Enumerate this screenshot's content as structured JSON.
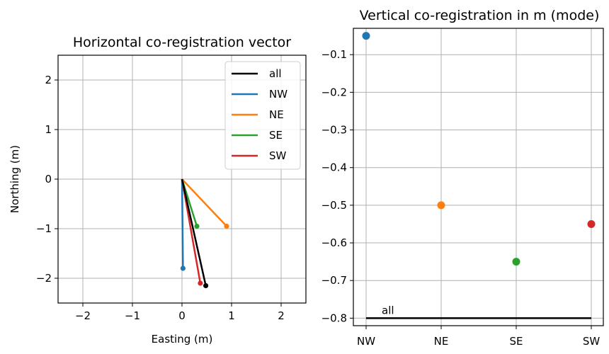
{
  "chart_data": [
    {
      "type": "line",
      "title": "Horizontal co-registration vector",
      "xlabel": "Easting (m)",
      "ylabel": "Northing (m)",
      "xlim": [
        -2.5,
        2.5
      ],
      "ylim": [
        -2.5,
        2.5
      ],
      "xticks": [
        -2,
        -1,
        0,
        1,
        2
      ],
      "yticks": [
        -2,
        -1,
        0,
        1,
        2
      ],
      "xtick_labels": [
        "−2",
        "−1",
        "0",
        "1",
        "2"
      ],
      "ytick_labels": [
        "−2",
        "−1",
        "0",
        "1",
        "2"
      ],
      "grid": true,
      "legend_position": "top-right",
      "series": [
        {
          "name": "all",
          "color": "#000000",
          "x": [
            0,
            0.48
          ],
          "y": [
            0,
            -2.15
          ]
        },
        {
          "name": "NW",
          "color": "#1f77b4",
          "x": [
            0,
            0.02
          ],
          "y": [
            0,
            -1.8
          ]
        },
        {
          "name": "NE",
          "color": "#ff7f0e",
          "x": [
            0,
            0.9
          ],
          "y": [
            0,
            -0.95
          ]
        },
        {
          "name": "SE",
          "color": "#2ca02c",
          "x": [
            0,
            0.3
          ],
          "y": [
            0,
            -0.95
          ]
        },
        {
          "name": "SW",
          "color": "#d62728",
          "x": [
            0,
            0.37
          ],
          "y": [
            0,
            -2.1
          ]
        }
      ]
    },
    {
      "type": "scatter",
      "title": "Vertical co-registration in m (mode)",
      "categories": [
        "NW",
        "NE",
        "SE",
        "SW"
      ],
      "values": [
        -0.05,
        -0.5,
        -0.65,
        -0.55
      ],
      "colors": [
        "#1f77b4",
        "#ff7f0e",
        "#2ca02c",
        "#d62728"
      ],
      "ylim": [
        -0.82,
        -0.03
      ],
      "yticks": [
        -0.1,
        -0.2,
        -0.3,
        -0.4,
        -0.5,
        -0.6,
        -0.7,
        -0.8
      ],
      "ytick_labels": [
        "−0.1",
        "−0.2",
        "−0.3",
        "−0.4",
        "−0.5",
        "−0.6",
        "−0.7",
        "−0.8"
      ],
      "grid": true,
      "reference_line": {
        "label": "all",
        "value": -0.8,
        "color": "#000000"
      }
    }
  ]
}
